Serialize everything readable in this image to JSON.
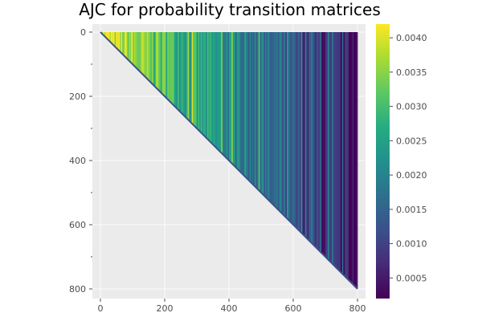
{
  "chart_data": {
    "type": "heatmap",
    "title": "AJC for probability transition matrices",
    "xlabel": "",
    "ylabel": "",
    "xlim": [
      0,
      800
    ],
    "ylim": [
      800,
      0
    ],
    "x_ticks": [
      0,
      200,
      400,
      600,
      800
    ],
    "y_ticks": [
      0,
      200,
      400,
      600,
      800
    ],
    "shape": "upper-triangular",
    "matrix_size": 800,
    "colormap": "viridis",
    "colorbar": {
      "range": [
        0.0002,
        0.0042
      ],
      "ticks": [
        "0.0005",
        "0.0010",
        "0.0015",
        "0.0020",
        "0.0025",
        "0.0030",
        "0.0035",
        "0.0040"
      ],
      "tick_values": [
        0.0005,
        0.001,
        0.0015,
        0.002,
        0.0025,
        0.003,
        0.0035,
        0.004
      ]
    },
    "grid": true,
    "background": "#ebebeb"
  }
}
